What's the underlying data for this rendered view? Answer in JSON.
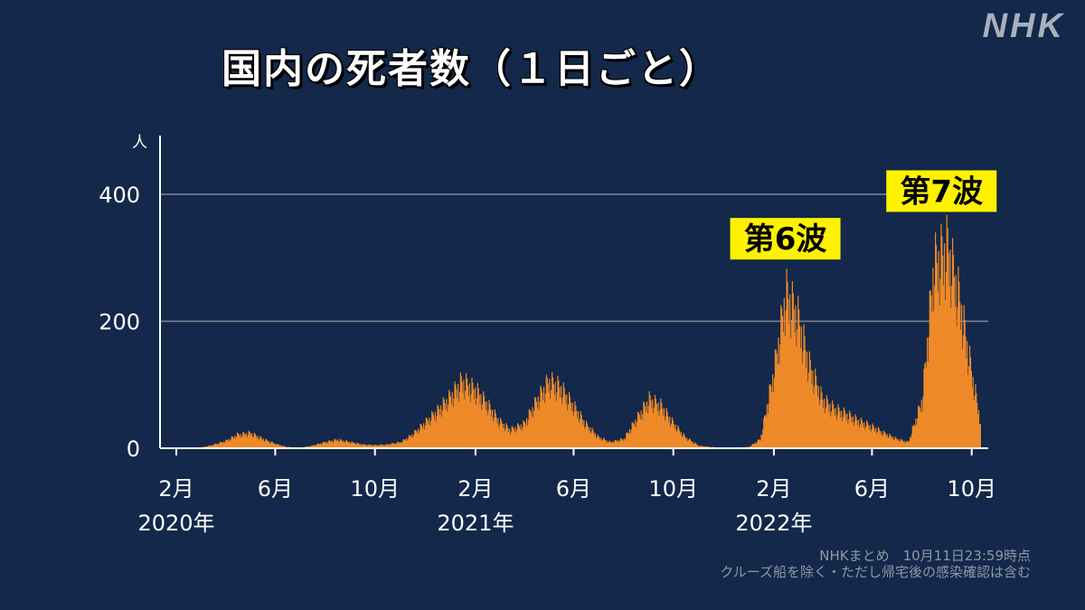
{
  "title": "国内の死者数（１日ごと）",
  "logo": "NHK",
  "source_line1": "NHKまとめ　10月11日23:59時点",
  "source_line2": "クルーズ船を除く・ただし帰宅後の感染確認は含む",
  "colors": {
    "background": "#13284a",
    "bars": "#f08a28",
    "annotation_bg": "#fff200"
  },
  "chart_data": {
    "type": "bar",
    "title": "国内の死者数（１日ごと）",
    "ylabel": "人",
    "ylim": [
      0,
      470
    ],
    "yticks": [
      0,
      200,
      400
    ],
    "gridlines": [
      200,
      400
    ],
    "x_start": "2020-01-01",
    "x_end": "2022-10-11",
    "x_ticks": [
      {
        "date": "2020-02-01",
        "label": "2月",
        "year": "2020年"
      },
      {
        "date": "2020-06-01",
        "label": "6月",
        "year": ""
      },
      {
        "date": "2020-10-01",
        "label": "10月",
        "year": ""
      },
      {
        "date": "2021-02-01",
        "label": "2月",
        "year": "2021年"
      },
      {
        "date": "2021-06-01",
        "label": "6月",
        "year": ""
      },
      {
        "date": "2021-10-01",
        "label": "10月",
        "year": ""
      },
      {
        "date": "2022-02-01",
        "label": "2月",
        "year": "2022年"
      },
      {
        "date": "2022-06-01",
        "label": "6月",
        "year": ""
      },
      {
        "date": "2022-10-01",
        "label": "10月",
        "year": ""
      }
    ],
    "series": [
      {
        "x": [
          "2020-03-01",
          "2020-03-15",
          "2020-04-01",
          "2020-04-15",
          "2020-05-01",
          "2020-05-15",
          "2020-06-01",
          "2020-06-15",
          "2020-07-01",
          "2020-07-15",
          "2020-08-01",
          "2020-08-15",
          "2020-09-01",
          "2020-09-15",
          "2020-10-01",
          "2020-10-15",
          "2020-11-01",
          "2020-11-15",
          "2020-12-01",
          "2020-12-15",
          "2021-01-01",
          "2021-01-15",
          "2021-02-01",
          "2021-02-15",
          "2021-03-01",
          "2021-03-15",
          "2021-04-01",
          "2021-04-15",
          "2021-05-01",
          "2021-05-15",
          "2021-06-01",
          "2021-06-15",
          "2021-07-01",
          "2021-07-15",
          "2021-08-01",
          "2021-08-15",
          "2021-09-01",
          "2021-09-15",
          "2021-10-01",
          "2021-10-15",
          "2021-11-01",
          "2021-11-15",
          "2021-12-01",
          "2021-12-15",
          "2022-01-01",
          "2022-01-15",
          "2022-02-01",
          "2022-02-15",
          "2022-03-01",
          "2022-03-15",
          "2022-04-01",
          "2022-04-15",
          "2022-05-01",
          "2022-05-15",
          "2022-06-01",
          "2022-06-15",
          "2022-07-01",
          "2022-07-15",
          "2022-08-01",
          "2022-08-15",
          "2022-09-01",
          "2022-09-15",
          "2022-10-01",
          "2022-10-11"
        ],
        "values": [
          1,
          5,
          12,
          22,
          25,
          16,
          7,
          2,
          1,
          4,
          10,
          14,
          10,
          6,
          5,
          6,
          10,
          22,
          42,
          60,
          85,
          110,
          95,
          72,
          45,
          30,
          40,
          75,
          110,
          100,
          68,
          40,
          18,
          10,
          15,
          45,
          80,
          70,
          40,
          18,
          4,
          2,
          1,
          1,
          2,
          15,
          130,
          255,
          220,
          140,
          80,
          65,
          55,
          45,
          35,
          25,
          15,
          10,
          80,
          300,
          330,
          250,
          120,
          45
        ]
      }
    ],
    "annotations": [
      {
        "text": "第6波",
        "date": "2022-02-15",
        "value": 330
      },
      {
        "text": "第7波",
        "date": "2022-08-25",
        "value": 405
      }
    ]
  }
}
